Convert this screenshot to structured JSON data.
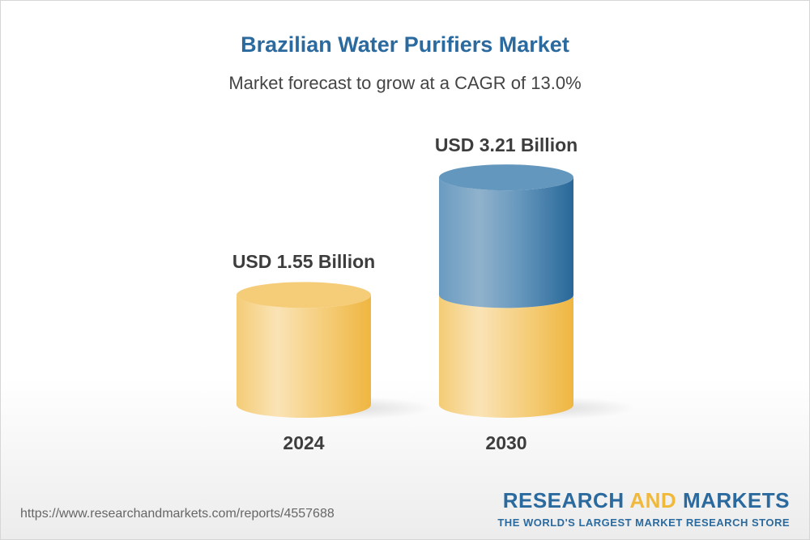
{
  "title": "Brazilian Water Purifiers Market",
  "subtitle": "Market forecast to grow at a CAGR of 13.0%",
  "chart_data": {
    "type": "bar",
    "style": "3d-cylinder",
    "categories": [
      "2024",
      "2030"
    ],
    "values": [
      1.55,
      3.21
    ],
    "value_labels": [
      "USD 1.55 Billion",
      "USD 3.21 Billion"
    ],
    "unit": "USD Billion",
    "cagr": "13.0%",
    "colors": {
      "base": "#f0b93c",
      "growth": "#2b6a9f"
    }
  },
  "footer": {
    "url": "https://www.researchandmarkets.com/reports/4557688",
    "logo_part1": "RESEARCH ",
    "logo_part2": "AND",
    "logo_part3": " MARKETS",
    "tagline": "THE WORLD'S LARGEST MARKET RESEARCH STORE"
  }
}
